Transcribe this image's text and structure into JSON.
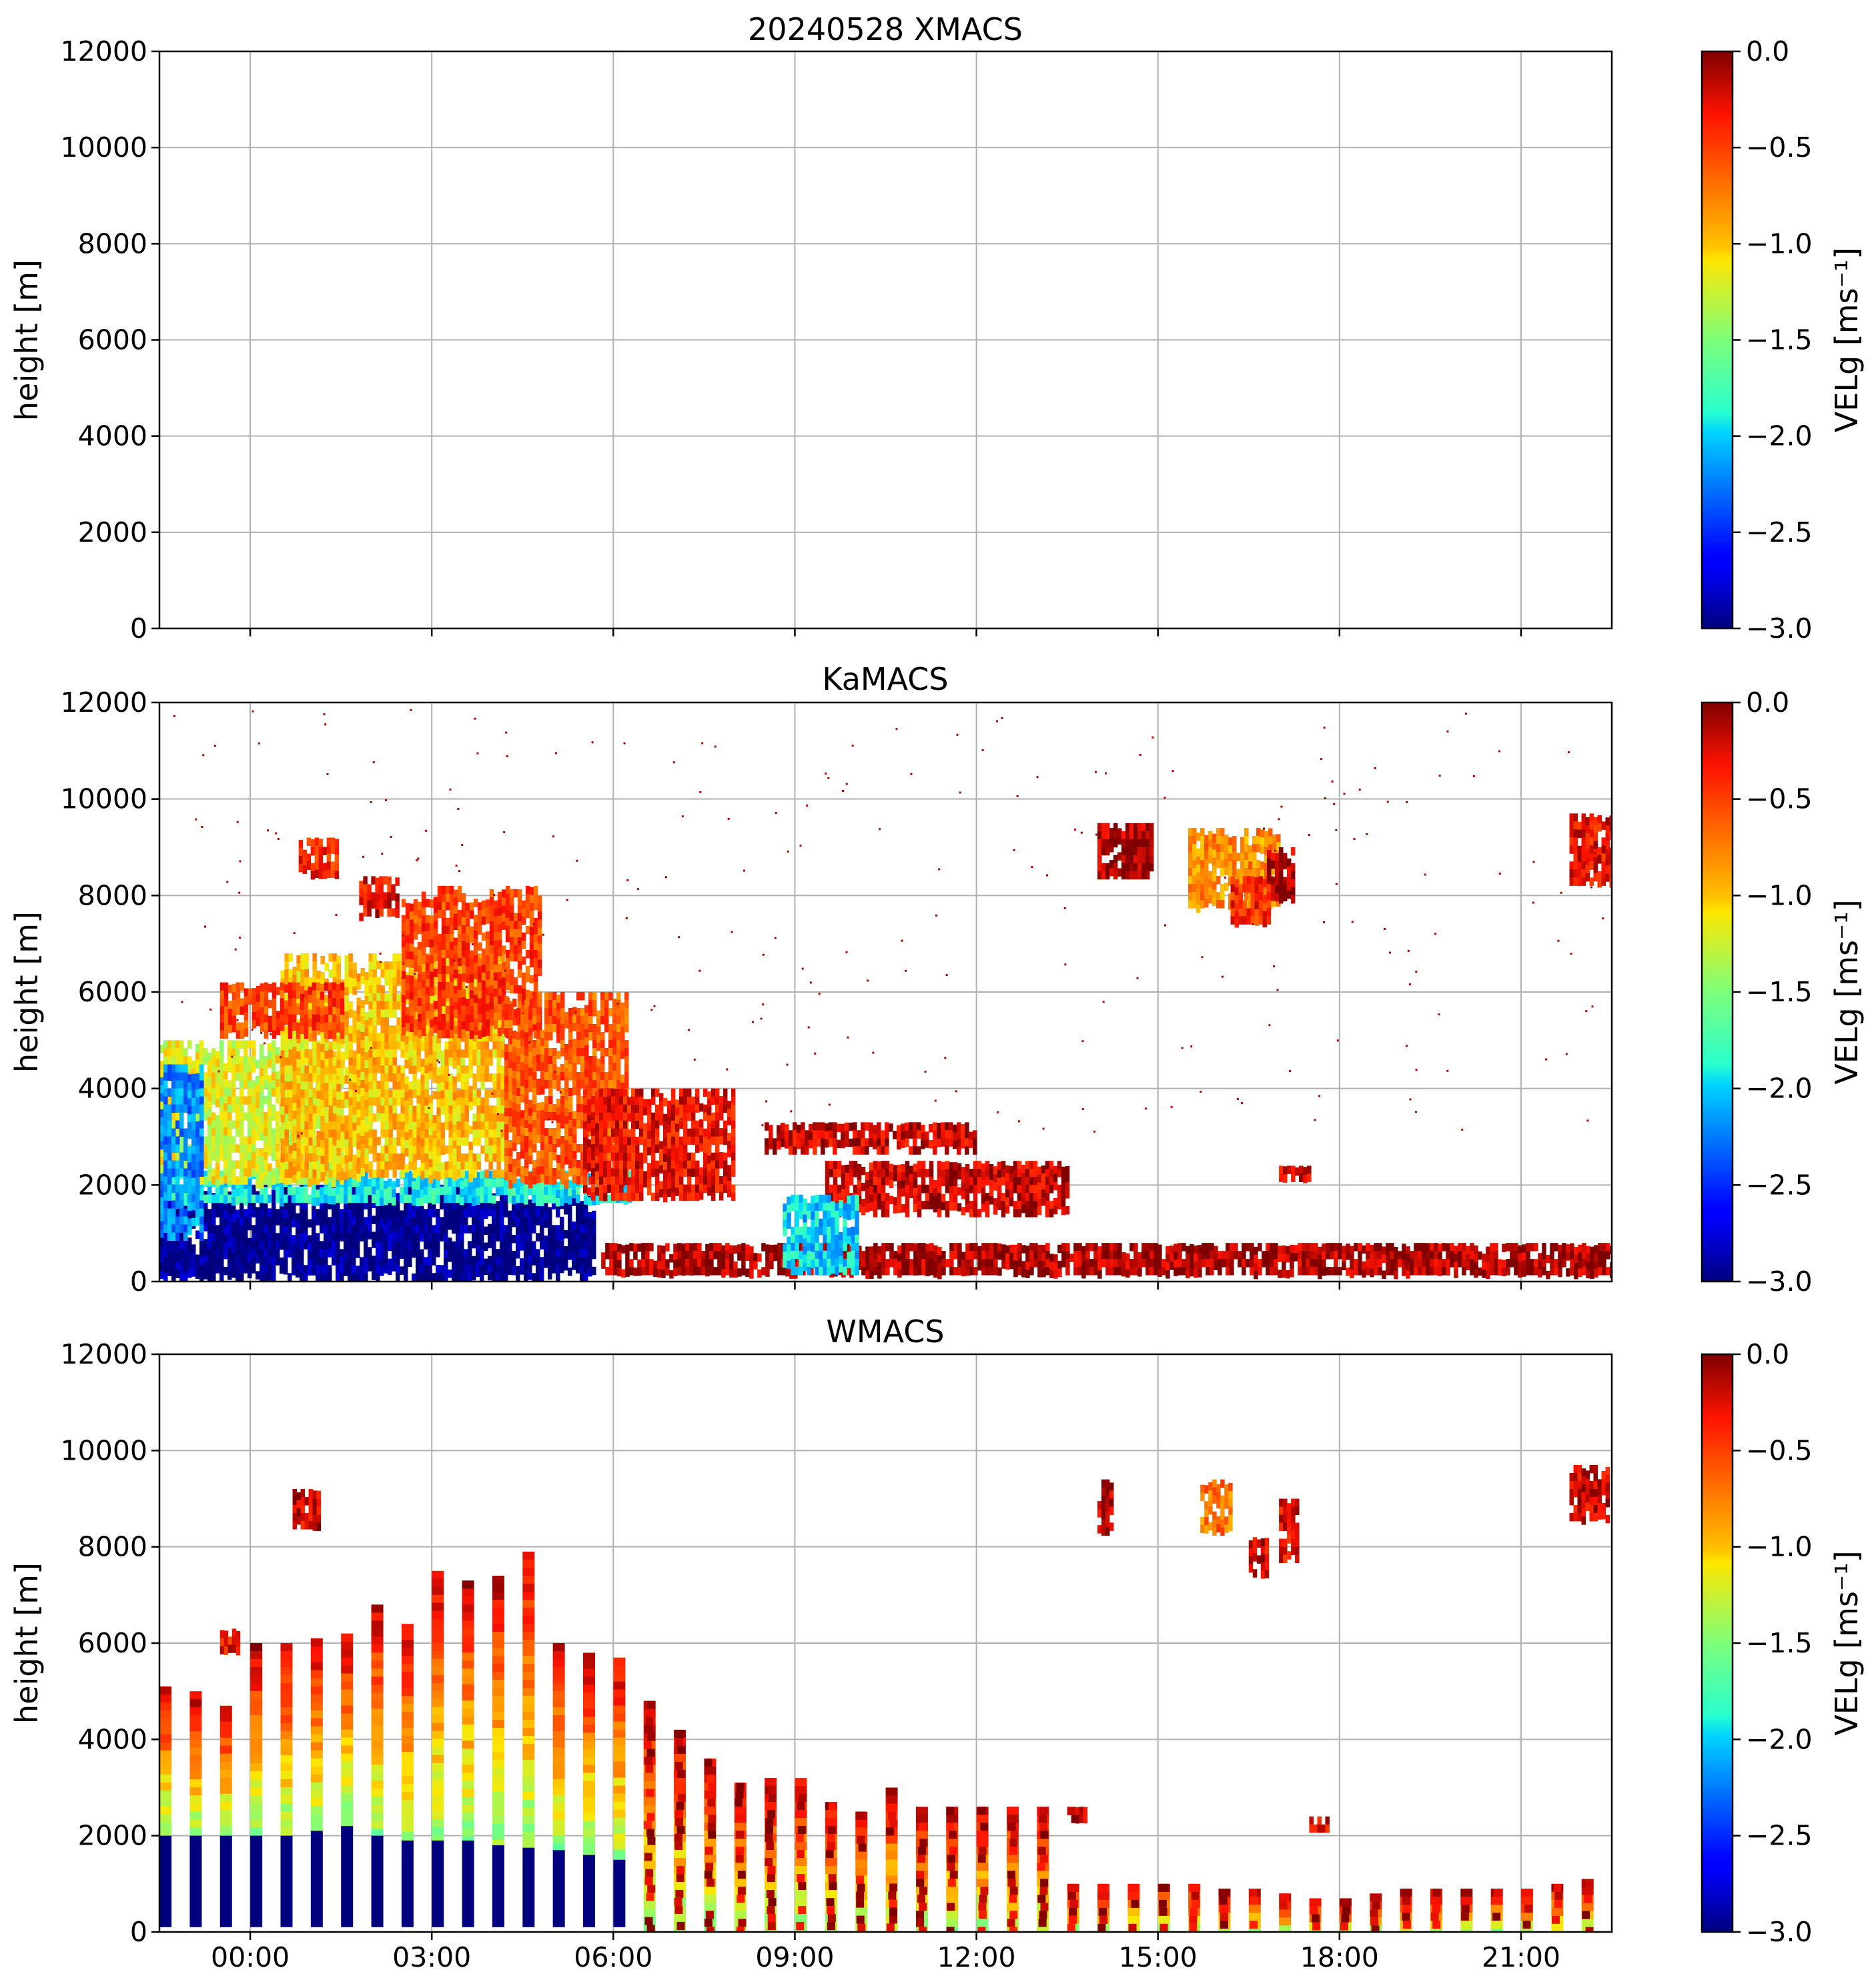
{
  "chart_data": [
    {
      "type": "heatmap",
      "title": "20240528 XMACS",
      "ylabel": "height [m]",
      "ylim": [
        0,
        12000
      ],
      "yticks": [
        "0",
        "2000",
        "4000",
        "6000",
        "8000",
        "10000",
        "12000"
      ],
      "xlim_hours": [
        -1.5,
        22.5
      ],
      "xtick_hours": [
        0,
        3,
        6,
        9,
        12,
        15,
        18,
        21
      ],
      "xticklabels": [],
      "grid": true,
      "colorbar": {
        "label": "VELg [ms⁻¹]",
        "range": [
          -3.0,
          0.0
        ],
        "ticks": [
          "−3.0",
          "−2.5",
          "−2.0",
          "−1.5",
          "−1.0",
          "−0.5",
          "0.0"
        ]
      },
      "regions": []
    },
    {
      "type": "heatmap",
      "title": "KaMACS",
      "ylabel": "height [m]",
      "ylim": [
        0,
        12000
      ],
      "yticks": [
        "0",
        "2000",
        "4000",
        "6000",
        "8000",
        "10000",
        "12000"
      ],
      "xlim_hours": [
        -1.5,
        22.5
      ],
      "xtick_hours": [
        0,
        3,
        6,
        9,
        12,
        15,
        18,
        21
      ],
      "xticklabels": [],
      "grid": true,
      "colorbar": {
        "label": "VELg [ms⁻¹]",
        "range": [
          -3.0,
          0.0
        ],
        "ticks": [
          "−3.0",
          "−2.5",
          "−2.0",
          "−1.5",
          "−1.0",
          "−0.5",
          "0.0"
        ]
      },
      "regions": [
        {
          "t0": -1.5,
          "t1": 5.7,
          "h0": 150,
          "h1": 2000,
          "vel": -3.0
        },
        {
          "t0": -1.5,
          "t1": 6.3,
          "h0": 1700,
          "h1": 2300,
          "vel": -1.9
        },
        {
          "t0": -1.5,
          "t1": 1.5,
          "h0": 2100,
          "h1": 5000,
          "vel": -1.2
        },
        {
          "t0": 0.5,
          "t1": 4.2,
          "h0": 2200,
          "h1": 6800,
          "vel": -1.0
        },
        {
          "t0": 2.5,
          "t1": 4.8,
          "h0": 5200,
          "h1": 8200,
          "vel": -0.5
        },
        {
          "t0": 4.2,
          "t1": 6.2,
          "h0": 2100,
          "h1": 6000,
          "vel": -0.6
        },
        {
          "t0": 5.5,
          "t1": 8.0,
          "h0": 1800,
          "h1": 4000,
          "vel": -0.3
        },
        {
          "t0": -0.5,
          "t1": 1.5,
          "h0": 5200,
          "h1": 6200,
          "vel": -0.5
        },
        {
          "t0": 0.8,
          "t1": 1.4,
          "h0": 8500,
          "h1": 9200,
          "vel": -0.4
        },
        {
          "t0": 1.8,
          "t1": 2.4,
          "h0": 7600,
          "h1": 8400,
          "vel": -0.3
        },
        {
          "t0": -1.5,
          "t1": -0.8,
          "h0": 1000,
          "h1": 4500,
          "vel": -2.2
        },
        {
          "t0": 5.8,
          "t1": 22.5,
          "h0": 150,
          "h1": 800,
          "vel": -0.1
        },
        {
          "t0": 9.5,
          "t1": 13.5,
          "h0": 1500,
          "h1": 2500,
          "vel": -0.2
        },
        {
          "t0": 8.8,
          "t1": 10.0,
          "h0": 300,
          "h1": 1800,
          "vel": -2.0
        },
        {
          "t0": 8.5,
          "t1": 12.0,
          "h0": 2800,
          "h1": 3300,
          "vel": -0.2
        },
        {
          "t0": 14.0,
          "t1": 14.9,
          "h0": 8500,
          "h1": 9500,
          "vel": -0.1
        },
        {
          "t0": 15.5,
          "t1": 17.0,
          "h0": 7800,
          "h1": 9400,
          "vel": -0.8
        },
        {
          "t0": 16.2,
          "t1": 16.8,
          "h0": 7500,
          "h1": 8400,
          "vel": -0.4
        },
        {
          "t0": 16.8,
          "t1": 17.2,
          "h0": 8000,
          "h1": 9000,
          "vel": -0.1
        },
        {
          "t0": 21.8,
          "t1": 22.5,
          "h0": 8300,
          "h1": 9700,
          "vel": -0.3
        },
        {
          "t0": 17.0,
          "t1": 17.5,
          "h0": 2100,
          "h1": 2400,
          "vel": -0.2
        }
      ]
    },
    {
      "type": "heatmap",
      "title": "WMACS",
      "ylabel": "height [m]",
      "ylim": [
        0,
        12000
      ],
      "yticks": [
        "0",
        "2000",
        "4000",
        "6000",
        "8000",
        "10000",
        "12000"
      ],
      "xlim_hours": [
        -1.5,
        22.5
      ],
      "xtick_hours": [
        0,
        3,
        6,
        9,
        12,
        15,
        18,
        21
      ],
      "xticklabels": [
        "00:00",
        "03:00",
        "06:00",
        "09:00",
        "12:00",
        "15:00",
        "18:00",
        "21:00"
      ],
      "grid": true,
      "colorbar": {
        "label": "VELg [ms⁻¹]",
        "range": [
          -3.0,
          0.0
        ],
        "ticks": [
          "−3.0",
          "−2.5",
          "−2.0",
          "−1.5",
          "−1.0",
          "−0.5",
          "0.0"
        ]
      },
      "stripes": [
        {
          "t": -1.4,
          "top": 5100,
          "base": 2000
        },
        {
          "t": -0.9,
          "top": 5000,
          "base": 2000
        },
        {
          "t": -0.4,
          "top": 4700,
          "base": 2000
        },
        {
          "t": 0.1,
          "top": 6000,
          "base": 2000
        },
        {
          "t": 0.6,
          "top": 6000,
          "base": 2000
        },
        {
          "t": 1.1,
          "top": 6100,
          "base": 2100
        },
        {
          "t": 1.6,
          "top": 6200,
          "base": 2200
        },
        {
          "t": 2.1,
          "top": 6800,
          "base": 2000
        },
        {
          "t": 2.6,
          "top": 6400,
          "base": 1900
        },
        {
          "t": 3.1,
          "top": 7500,
          "base": 1900
        },
        {
          "t": 3.6,
          "top": 7300,
          "base": 1900
        },
        {
          "t": 4.1,
          "top": 7400,
          "base": 1800
        },
        {
          "t": 4.6,
          "top": 7900,
          "base": 1750
        },
        {
          "t": 5.1,
          "top": 6000,
          "base": 1700
        },
        {
          "t": 5.6,
          "top": 5800,
          "base": 1600
        },
        {
          "t": 6.1,
          "top": 5700,
          "base": 1500
        },
        {
          "t": 6.6,
          "top": 4800,
          "base": 0
        },
        {
          "t": 7.1,
          "top": 4200,
          "base": 0
        },
        {
          "t": 7.6,
          "top": 3600,
          "base": 0
        },
        {
          "t": 8.1,
          "top": 3100,
          "base": 0
        },
        {
          "t": 8.6,
          "top": 3200,
          "base": 0
        },
        {
          "t": 9.1,
          "top": 3200,
          "base": 0
        },
        {
          "t": 9.6,
          "top": 2700,
          "base": 0
        },
        {
          "t": 10.1,
          "top": 2500,
          "base": 0
        },
        {
          "t": 10.6,
          "top": 3000,
          "base": 0
        },
        {
          "t": 11.1,
          "top": 2600,
          "base": 0
        },
        {
          "t": 11.6,
          "top": 2600,
          "base": 0
        },
        {
          "t": 12.1,
          "top": 2600,
          "base": 0
        },
        {
          "t": 12.6,
          "top": 2600,
          "base": 0
        },
        {
          "t": 13.1,
          "top": 2600,
          "base": 0
        },
        {
          "t": 13.6,
          "top": 1000,
          "base": 0
        },
        {
          "t": 14.1,
          "top": 1000,
          "base": 0
        },
        {
          "t": 14.6,
          "top": 1000,
          "base": 0
        },
        {
          "t": 15.1,
          "top": 1000,
          "base": 0
        },
        {
          "t": 15.6,
          "top": 1000,
          "base": 0
        },
        {
          "t": 16.1,
          "top": 900,
          "base": 0
        },
        {
          "t": 16.6,
          "top": 900,
          "base": 0
        },
        {
          "t": 17.1,
          "top": 800,
          "base": 0
        },
        {
          "t": 17.6,
          "top": 700,
          "base": 0
        },
        {
          "t": 18.1,
          "top": 700,
          "base": 0
        },
        {
          "t": 18.6,
          "top": 800,
          "base": 0
        },
        {
          "t": 19.1,
          "top": 900,
          "base": 0
        },
        {
          "t": 19.6,
          "top": 900,
          "base": 0
        },
        {
          "t": 20.1,
          "top": 900,
          "base": 0
        },
        {
          "t": 20.6,
          "top": 900,
          "base": 0
        },
        {
          "t": 21.1,
          "top": 900,
          "base": 0
        },
        {
          "t": 21.6,
          "top": 1000,
          "base": 0
        },
        {
          "t": 22.1,
          "top": 1100,
          "base": 0
        }
      ],
      "regions": [
        {
          "t0": -0.5,
          "t1": -0.2,
          "h0": 5900,
          "h1": 6300,
          "vel": -0.3
        },
        {
          "t0": 0.7,
          "t1": 1.1,
          "h0": 8500,
          "h1": 9200,
          "vel": -0.2
        },
        {
          "t0": 14.0,
          "t1": 14.2,
          "h0": 8400,
          "h1": 9400,
          "vel": -0.1
        },
        {
          "t0": 15.7,
          "t1": 16.2,
          "h0": 8400,
          "h1": 9400,
          "vel": -0.7
        },
        {
          "t0": 16.5,
          "t1": 16.8,
          "h0": 7500,
          "h1": 8200,
          "vel": -0.2
        },
        {
          "t0": 17.0,
          "t1": 17.3,
          "h0": 7800,
          "h1": 9000,
          "vel": -0.3
        },
        {
          "t0": 21.8,
          "t1": 22.4,
          "h0": 8600,
          "h1": 9700,
          "vel": -0.2
        },
        {
          "t0": 13.5,
          "t1": 13.8,
          "h0": 2400,
          "h1": 2600,
          "vel": -0.2
        },
        {
          "t0": 17.5,
          "t1": 17.8,
          "h0": 2100,
          "h1": 2400,
          "vel": -0.3
        }
      ]
    }
  ]
}
